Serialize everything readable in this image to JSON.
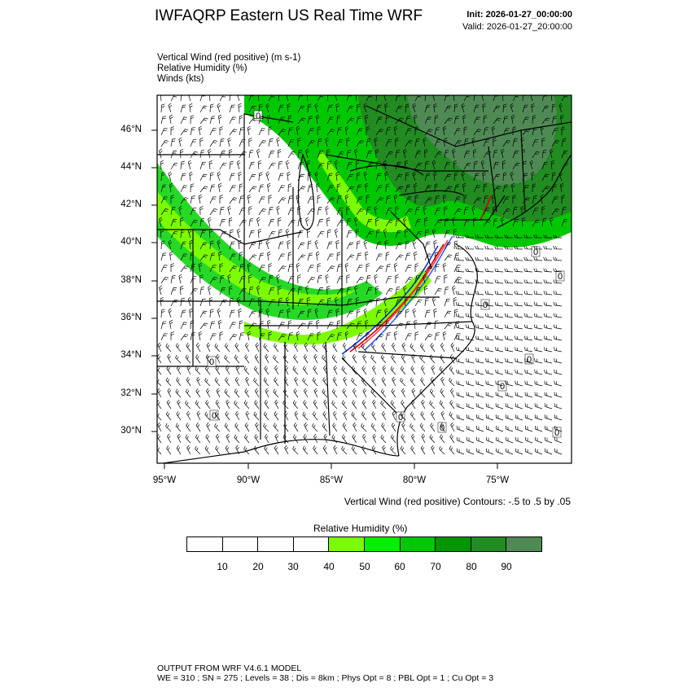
{
  "header": {
    "title": "IWFAQRP Eastern US Real Time WRF",
    "init": "Init: 2026-01-27_00:00:00",
    "valid": "Valid: 2026-01-27_20:00:00"
  },
  "fields": [
    "Vertical Wind (red positive)   (m s-1)",
    "Relative Humidity   (%)",
    "Winds   (kts)"
  ],
  "map": {
    "lat_labels": [
      "46°N",
      "44°N",
      "42°N",
      "40°N",
      "38°N",
      "36°N",
      "34°N",
      "32°N",
      "30°N"
    ],
    "lon_labels": [
      "95°W",
      "90°W",
      "85°W",
      "80°W",
      "75°W"
    ],
    "contour_zero_label": "0",
    "contour_note": "Vertical Wind (red positive) Contours: -.5 to .5 by .05"
  },
  "colorbar": {
    "title": "Relative Humidity   (%)",
    "tick_labels": [
      "10",
      "20",
      "30",
      "40",
      "50",
      "60",
      "70",
      "80",
      "90"
    ],
    "colors": [
      "#ffffff",
      "#ffffff",
      "#ffffff",
      "#ffffff",
      "#7cfc00",
      "#00f000",
      "#00c800",
      "#009600",
      "#228b22",
      "#4f8a55"
    ]
  },
  "footer": {
    "line1": "OUTPUT FROM WRF V4.6.1 MODEL",
    "line2": "WE = 310 ; SN = 275 ; Levels = 38 ; Dis = 8km ; Phys Opt = 8 ; PBL Opt = 1 ; Cu Opt = 3"
  }
}
